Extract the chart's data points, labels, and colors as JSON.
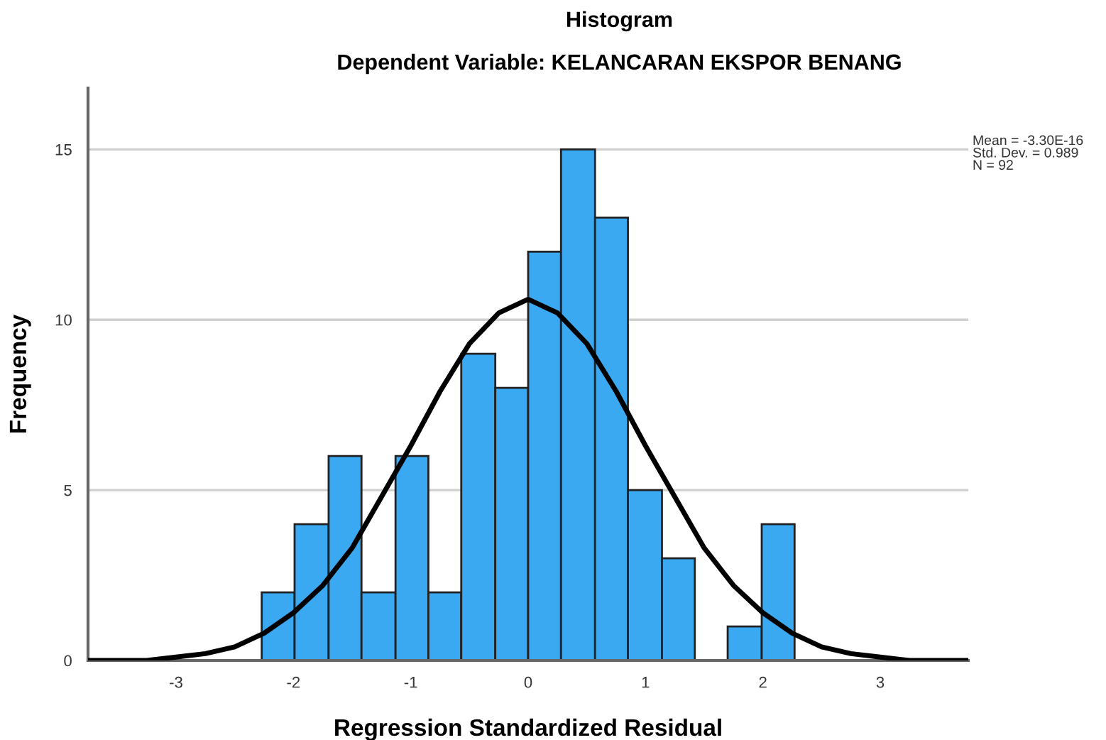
{
  "chart_data": {
    "type": "histogram",
    "title": "Histogram",
    "subtitle": "Dependent Variable: KELANCARAN EKSPOR BENANG",
    "xlabel": "Regression Standardized Residual",
    "ylabel": "Frequency",
    "bins": [
      -2.27,
      -1.99,
      -1.7,
      -1.42,
      -1.13,
      -0.85,
      -0.57,
      -0.28,
      0.0,
      0.28,
      0.57,
      0.85,
      1.14,
      1.42,
      1.7,
      1.99,
      2.27
    ],
    "values": [
      2,
      4,
      6,
      2,
      6,
      2,
      9,
      8,
      12,
      15,
      13,
      5,
      3,
      0,
      1,
      4
    ],
    "color": "#3aa9f2",
    "series": [
      {
        "type": "line",
        "color": "#000000",
        "x": [
          -3.75,
          -3.5,
          -3.25,
          -3.0,
          -2.75,
          -2.5,
          -2.25,
          -2.0,
          -1.75,
          -1.5,
          -1.25,
          -1.0,
          -0.75,
          -0.5,
          -0.25,
          0.0,
          0.25,
          0.5,
          0.75,
          1.0,
          1.25,
          1.5,
          1.75,
          2.0,
          2.25,
          2.5,
          2.75,
          3.0,
          3.25,
          3.5,
          3.75
        ],
        "values": [
          0.0,
          0.0,
          0.0,
          0.1,
          0.2,
          0.4,
          0.8,
          1.4,
          2.2,
          3.3,
          4.8,
          6.3,
          7.9,
          9.3,
          10.2,
          10.6,
          10.2,
          9.3,
          7.9,
          6.3,
          4.8,
          3.3,
          2.2,
          1.4,
          0.8,
          0.4,
          0.2,
          0.1,
          0.0,
          0.0,
          0.0
        ]
      }
    ],
    "xlim": [
      -3.75,
      3.75
    ],
    "xticks": [
      {
        "value": -3,
        "label": "-3"
      },
      {
        "value": -2,
        "label": "-2"
      },
      {
        "value": -1,
        "label": "-1"
      },
      0,
      1,
      2,
      3
    ],
    "ylim": [
      0,
      16.8
    ],
    "yticks": [
      0,
      5,
      10,
      15
    ],
    "grid": "y",
    "annotations": [
      "Mean = -3.30E-16\nStd. Dev. = 0.989\nN = 92"
    ]
  }
}
